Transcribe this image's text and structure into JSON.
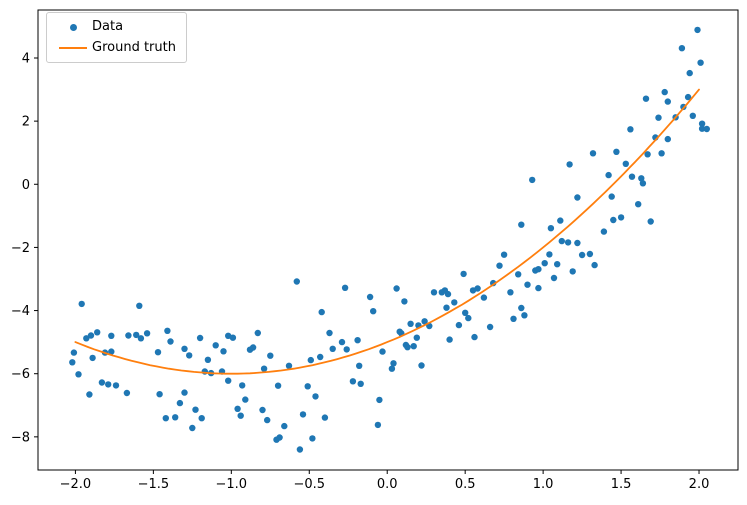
{
  "chart_data": {
    "type": "scatter",
    "title": "",
    "xlabel": "",
    "ylabel": "",
    "grid": false,
    "background_color": "#ffffff",
    "spine_color": "#000000",
    "tick_label_color": "#000000",
    "xlim": [
      -2.24,
      2.25
    ],
    "ylim": [
      -9.05,
      5.52
    ],
    "x_ticks": {
      "values": [
        -2.0,
        -1.5,
        -1.0,
        -0.5,
        0.0,
        0.5,
        1.0,
        1.5,
        2.0
      ],
      "labels": [
        "−2.0",
        "−1.5",
        "−1.0",
        "−0.5",
        "0.0",
        "0.5",
        "1.0",
        "1.5",
        "2.0"
      ]
    },
    "y_ticks": {
      "values": [
        4,
        2,
        0,
        -2,
        -4,
        -6,
        -8
      ],
      "labels": [
        "4",
        "2",
        "0",
        "−2",
        "−4",
        "−6",
        "−8"
      ]
    },
    "legend": {
      "position": "upper left",
      "entries": [
        {
          "label": "Data",
          "type": "marker",
          "color": "#1f77b4"
        },
        {
          "label": "Ground truth",
          "type": "line",
          "color": "#ff7f0e"
        }
      ]
    },
    "series": [
      {
        "name": "Data",
        "type": "scatter",
        "color": "#1f77b4",
        "marker_radius": 3.2,
        "points": [
          [
            -2.02,
            -5.64
          ],
          [
            -2.01,
            -5.33
          ],
          [
            -1.98,
            -6.02
          ],
          [
            -1.96,
            -3.79
          ],
          [
            -1.93,
            -4.88
          ],
          [
            -1.91,
            -6.66
          ],
          [
            -1.9,
            -4.79
          ],
          [
            -1.89,
            -5.5
          ],
          [
            -1.86,
            -4.69
          ],
          [
            -1.83,
            -6.28
          ],
          [
            -1.81,
            -5.33
          ],
          [
            -1.79,
            -6.34
          ],
          [
            -1.77,
            -5.3
          ],
          [
            -1.77,
            -4.8
          ],
          [
            -1.74,
            -6.37
          ],
          [
            -1.67,
            -6.61
          ],
          [
            -1.66,
            -4.79
          ],
          [
            -1.61,
            -4.77
          ],
          [
            -1.59,
            -3.85
          ],
          [
            -1.58,
            -4.88
          ],
          [
            -1.54,
            -4.72
          ],
          [
            -1.47,
            -5.32
          ],
          [
            -1.46,
            -6.65
          ],
          [
            -1.42,
            -7.41
          ],
          [
            -1.41,
            -4.64
          ],
          [
            -1.39,
            -4.98
          ],
          [
            -1.36,
            -7.38
          ],
          [
            -1.33,
            -6.93
          ],
          [
            -1.3,
            -6.6
          ],
          [
            -1.3,
            -5.21
          ],
          [
            -1.27,
            -5.42
          ],
          [
            -1.25,
            -7.72
          ],
          [
            -1.23,
            -7.14
          ],
          [
            -1.2,
            -4.87
          ],
          [
            -1.19,
            -7.41
          ],
          [
            -1.17,
            -5.93
          ],
          [
            -1.15,
            -5.56
          ],
          [
            -1.13,
            -5.98
          ],
          [
            -1.1,
            -5.1
          ],
          [
            -1.06,
            -5.93
          ],
          [
            -1.05,
            -5.29
          ],
          [
            -1.02,
            -6.22
          ],
          [
            -1.02,
            -4.8
          ],
          [
            -0.99,
            -4.86
          ],
          [
            -0.96,
            -7.11
          ],
          [
            -0.94,
            -7.33
          ],
          [
            -0.93,
            -6.37
          ],
          [
            -0.91,
            -6.82
          ],
          [
            -0.88,
            -5.24
          ],
          [
            -0.86,
            -5.17
          ],
          [
            -0.83,
            -4.71
          ],
          [
            -0.8,
            -7.15
          ],
          [
            -0.79,
            -5.84
          ],
          [
            -0.77,
            -7.47
          ],
          [
            -0.75,
            -5.43
          ],
          [
            -0.71,
            -8.09
          ],
          [
            -0.7,
            -6.38
          ],
          [
            -0.69,
            -8.02
          ],
          [
            -0.66,
            -7.66
          ],
          [
            -0.63,
            -5.75
          ],
          [
            -0.58,
            -3.08
          ],
          [
            -0.56,
            -8.4
          ],
          [
            -0.54,
            -7.29
          ],
          [
            -0.51,
            -6.4
          ],
          [
            -0.49,
            -5.57
          ],
          [
            -0.48,
            -8.05
          ],
          [
            -0.46,
            -6.72
          ],
          [
            -0.43,
            -5.47
          ],
          [
            -0.42,
            -4.05
          ],
          [
            -0.4,
            -7.39
          ],
          [
            -0.37,
            -4.71
          ],
          [
            -0.35,
            -5.21
          ],
          [
            -0.29,
            -5.0
          ],
          [
            -0.27,
            -3.28
          ],
          [
            -0.26,
            -5.23
          ],
          [
            -0.22,
            -6.24
          ],
          [
            -0.19,
            -4.94
          ],
          [
            -0.18,
            -5.75
          ],
          [
            -0.17,
            -6.32
          ],
          [
            -0.11,
            -3.57
          ],
          [
            -0.09,
            -4.02
          ],
          [
            -0.06,
            -7.62
          ],
          [
            -0.05,
            -6.83
          ],
          [
            -0.03,
            -5.3
          ],
          [
            0.03,
            -5.84
          ],
          [
            0.04,
            -5.67
          ],
          [
            0.06,
            -3.3
          ],
          [
            0.08,
            -4.67
          ],
          [
            0.09,
            -4.72
          ],
          [
            0.11,
            -3.71
          ],
          [
            0.12,
            -5.09
          ],
          [
            0.13,
            -5.16
          ],
          [
            0.15,
            -4.42
          ],
          [
            0.17,
            -5.13
          ],
          [
            0.19,
            -4.86
          ],
          [
            0.2,
            -4.47
          ],
          [
            0.22,
            -5.74
          ],
          [
            0.24,
            -4.34
          ],
          [
            0.27,
            -4.49
          ],
          [
            0.3,
            -3.42
          ],
          [
            0.35,
            -3.42
          ],
          [
            0.37,
            -3.36
          ],
          [
            0.39,
            -3.48
          ],
          [
            0.38,
            -3.91
          ],
          [
            0.4,
            -4.92
          ],
          [
            0.43,
            -3.74
          ],
          [
            0.46,
            -4.46
          ],
          [
            0.49,
            -2.84
          ],
          [
            0.5,
            -4.07
          ],
          [
            0.52,
            -4.24
          ],
          [
            0.55,
            -3.36
          ],
          [
            0.56,
            -4.84
          ],
          [
            0.58,
            -3.3
          ],
          [
            0.62,
            -3.59
          ],
          [
            0.66,
            -4.52
          ],
          [
            0.68,
            -3.13
          ],
          [
            0.72,
            -2.58
          ],
          [
            0.75,
            -2.23
          ],
          [
            0.79,
            -3.42
          ],
          [
            0.81,
            -4.26
          ],
          [
            0.84,
            -2.85
          ],
          [
            0.86,
            -3.92
          ],
          [
            0.86,
            -1.28
          ],
          [
            0.88,
            -4.15
          ],
          [
            0.9,
            -3.18
          ],
          [
            0.93,
            0.14
          ],
          [
            0.95,
            -2.73
          ],
          [
            0.97,
            -2.69
          ],
          [
            0.97,
            -3.29
          ],
          [
            1.01,
            -2.5
          ],
          [
            1.04,
            -2.22
          ],
          [
            1.05,
            -1.39
          ],
          [
            1.07,
            -2.97
          ],
          [
            1.09,
            -2.53
          ],
          [
            1.11,
            -1.15
          ],
          [
            1.12,
            -1.8
          ],
          [
            1.16,
            -1.84
          ],
          [
            1.17,
            0.63
          ],
          [
            1.19,
            -2.76
          ],
          [
            1.22,
            -1.86
          ],
          [
            1.22,
            -0.42
          ],
          [
            1.25,
            -2.24
          ],
          [
            1.3,
            -2.21
          ],
          [
            1.32,
            0.98
          ],
          [
            1.33,
            -2.56
          ],
          [
            1.39,
            -1.5
          ],
          [
            1.42,
            0.29
          ],
          [
            1.44,
            -0.39
          ],
          [
            1.45,
            -1.13
          ],
          [
            1.47,
            1.03
          ],
          [
            1.5,
            -1.05
          ],
          [
            1.53,
            0.65
          ],
          [
            1.56,
            1.74
          ],
          [
            1.57,
            0.24
          ],
          [
            1.61,
            -0.63
          ],
          [
            1.63,
            0.19
          ],
          [
            1.64,
            0.03
          ],
          [
            1.66,
            2.71
          ],
          [
            1.67,
            0.95
          ],
          [
            1.69,
            -1.18
          ],
          [
            1.72,
            1.48
          ],
          [
            1.74,
            2.11
          ],
          [
            1.76,
            0.98
          ],
          [
            1.78,
            2.92
          ],
          [
            1.8,
            2.62
          ],
          [
            1.8,
            1.43
          ],
          [
            1.85,
            2.12
          ],
          [
            1.89,
            4.31
          ],
          [
            1.9,
            2.45
          ],
          [
            1.93,
            2.76
          ],
          [
            1.94,
            3.52
          ],
          [
            1.96,
            2.17
          ],
          [
            1.99,
            4.89
          ],
          [
            2.01,
            3.85
          ],
          [
            2.02,
            1.92
          ],
          [
            2.02,
            1.76
          ],
          [
            2.05,
            1.75
          ]
        ]
      },
      {
        "name": "Ground truth",
        "type": "line",
        "color": "#ff7f0e",
        "line_width": 1.8,
        "poly_coeffs": [
          1,
          2,
          -5
        ],
        "formula": "y = x^2 + 2x - 5",
        "x_range": [
          -2.0,
          2.0
        ]
      }
    ]
  }
}
